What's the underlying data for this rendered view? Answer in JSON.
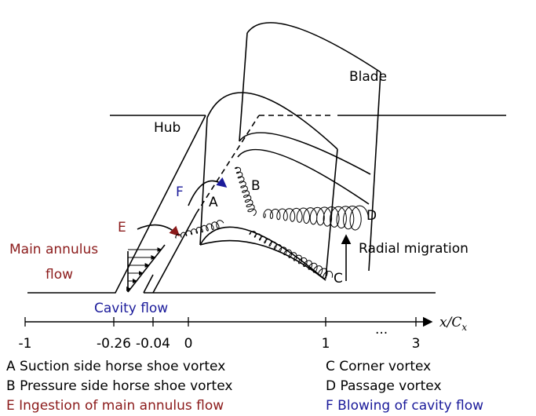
{
  "labels": {
    "blade": "Blade",
    "hub": "Hub",
    "a": "A",
    "b": "B",
    "c": "C",
    "d": "D",
    "e": "E",
    "f": "F",
    "main_annulus": [
      "Main annulus",
      "flow"
    ],
    "radial_migration": "Radial migration",
    "cavity_flow": "Cavity flow"
  },
  "axis": {
    "ticks": [
      "-1",
      "-0.26",
      "-0.04",
      "0",
      "1",
      "3"
    ],
    "ellipsis": "···",
    "label": {
      "main": "x/C",
      "subscript": "x"
    }
  },
  "legend": {
    "left": [
      "A Suction side horse shoe vortex",
      "B Pressure side horse shoe vortex",
      "E Ingestion of main annulus flow"
    ],
    "right": [
      "C Corner vortex",
      "D Passage vortex",
      "F Blowing of cavity flow"
    ]
  }
}
